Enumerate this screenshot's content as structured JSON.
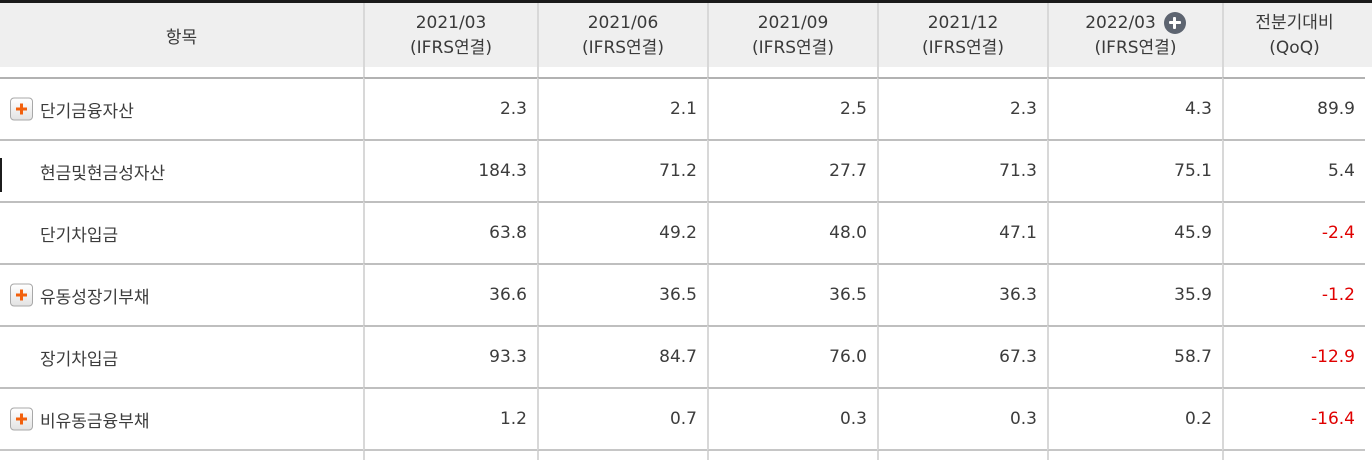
{
  "table": {
    "item_header": "항목",
    "columns": [
      {
        "period": "2021/03",
        "basis": "(IFRS연결)",
        "has_add_icon": false
      },
      {
        "period": "2021/06",
        "basis": "(IFRS연결)",
        "has_add_icon": false
      },
      {
        "period": "2021/09",
        "basis": "(IFRS연결)",
        "has_add_icon": false
      },
      {
        "period": "2021/12",
        "basis": "(IFRS연결)",
        "has_add_icon": false
      },
      {
        "period": "2022/03",
        "basis": "(IFRS연결)",
        "has_add_icon": true
      },
      {
        "period": "전분기대비",
        "basis": "(QoQ)",
        "has_add_icon": false
      }
    ],
    "rows": [
      {
        "label": "단기금융자산",
        "expandable": true,
        "values": [
          "2.3",
          "2.1",
          "2.5",
          "2.3",
          "4.3",
          "89.9"
        ]
      },
      {
        "label": "현금및현금성자산",
        "expandable": false,
        "values": [
          "184.3",
          "71.2",
          "27.7",
          "71.3",
          "75.1",
          "5.4"
        ]
      },
      {
        "label": "단기차입금",
        "expandable": false,
        "values": [
          "63.8",
          "49.2",
          "48.0",
          "47.1",
          "45.9",
          "-2.4"
        ]
      },
      {
        "label": "유동성장기부채",
        "expandable": true,
        "values": [
          "36.6",
          "36.5",
          "36.5",
          "36.3",
          "35.9",
          "-1.2"
        ]
      },
      {
        "label": "장기차입금",
        "expandable": false,
        "values": [
          "93.3",
          "84.7",
          "76.0",
          "67.3",
          "58.7",
          "-12.9"
        ]
      },
      {
        "label": "비유동금융부채",
        "expandable": true,
        "values": [
          "1.2",
          "0.7",
          "0.3",
          "0.3",
          "0.2",
          "-16.4"
        ]
      }
    ]
  },
  "icons": {
    "expand_row": "plus-icon",
    "add_column": "plus-circle-icon"
  },
  "colors": {
    "negative_value": "#e00000",
    "plus_icon_orange": "#f2600c",
    "add_circle_gray": "#5d6470",
    "header_bg": "#efefef",
    "top_rule": "#1b1b1b"
  }
}
